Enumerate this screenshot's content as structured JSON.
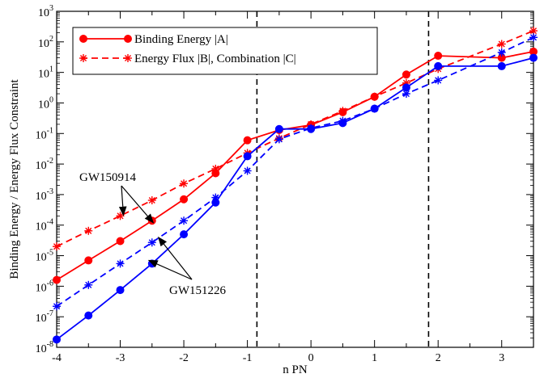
{
  "chart_data": {
    "type": "line",
    "title": "",
    "xlabel": "n PN",
    "ylabel": "Binding Energy / Energy Flux Constraint",
    "xlim": [
      -4,
      3.5
    ],
    "ylim_log10": [
      -8,
      3
    ],
    "yscale": "log",
    "grid": false,
    "legend_position": "top-left",
    "x_ticks": [
      -4,
      -3,
      -2,
      -1,
      0,
      1,
      2,
      3
    ],
    "x_tick_labels": [
      "-4",
      "-3",
      "-2",
      "-1",
      "0",
      "1",
      "2",
      "3"
    ],
    "y_tick_exponents": [
      -8,
      -7,
      -6,
      -5,
      -4,
      -3,
      -2,
      -1,
      0,
      1,
      2,
      3
    ],
    "y_tick_base": "10",
    "vlines": [
      -0.85,
      1.85
    ],
    "legend": [
      {
        "label": "Binding Energy |A|",
        "style": "solid",
        "marker": "circle",
        "color": "#ff0000"
      },
      {
        "label": "Energy Flux |B|, Combination |C|",
        "style": "dashed",
        "marker": "star",
        "color": "#ff0000"
      }
    ],
    "series": [
      {
        "key": "gw150914_binding",
        "color": "#ff0000",
        "style": "solid",
        "marker": "circle",
        "x": [
          -4,
          -3.5,
          -3,
          -2.5,
          -2,
          -1.5,
          -1,
          -0.5,
          0,
          0.5,
          1,
          1.5,
          2,
          3,
          3.5
        ],
        "y": [
          1.6e-06,
          7e-06,
          3e-05,
          0.00014,
          0.0007,
          0.005,
          0.06,
          0.13,
          0.19,
          0.5,
          1.6,
          8.5,
          35,
          30,
          48
        ]
      },
      {
        "key": "gw150914_flux",
        "color": "#ff0000",
        "style": "dashed",
        "marker": "star",
        "x": [
          -4,
          -3.5,
          -3,
          -2.5,
          -2,
          -1.5,
          -1,
          -0.5,
          0,
          0.5,
          1,
          1.5,
          2,
          3,
          3.5
        ],
        "y": [
          2e-05,
          6.5e-05,
          0.0002,
          0.00065,
          0.0023,
          0.007,
          0.023,
          0.07,
          0.2,
          0.55,
          1.6,
          4.5,
          13,
          85,
          230
        ]
      },
      {
        "key": "gw151226_binding",
        "color": "#0000ff",
        "style": "solid",
        "marker": "circle",
        "x": [
          -4,
          -3.5,
          -3,
          -2.5,
          -2,
          -1.5,
          -1,
          -0.5,
          0,
          0.5,
          1,
          1.5,
          2,
          3,
          3.5
        ],
        "y": [
          1.8e-08,
          1.1e-07,
          7.5e-07,
          5.5e-06,
          5e-05,
          0.00055,
          0.018,
          0.14,
          0.14,
          0.22,
          0.65,
          3.2,
          16,
          16,
          30
        ]
      },
      {
        "key": "gw151226_flux",
        "color": "#0000ff",
        "style": "dashed",
        "marker": "star",
        "x": [
          -4,
          -3.5,
          -3,
          -2.5,
          -2,
          -1.5,
          -1,
          -0.5,
          0,
          0.5,
          1,
          1.5,
          2,
          3,
          3.5
        ],
        "y": [
          2.2e-07,
          1.1e-06,
          5.5e-06,
          2.7e-05,
          0.00014,
          0.0008,
          0.006,
          0.065,
          0.15,
          0.26,
          0.65,
          2,
          5.5,
          45,
          140
        ]
      }
    ],
    "annotations": [
      {
        "text": "GW150914",
        "arrow_targets": [
          [
            -2.95,
            0.00021
          ],
          [
            -2.48,
            0.00012
          ]
        ]
      },
      {
        "text": "GW151226",
        "arrow_targets": [
          [
            -2.4,
            4e-05
          ],
          [
            -2.55,
            7e-06
          ]
        ]
      }
    ]
  }
}
